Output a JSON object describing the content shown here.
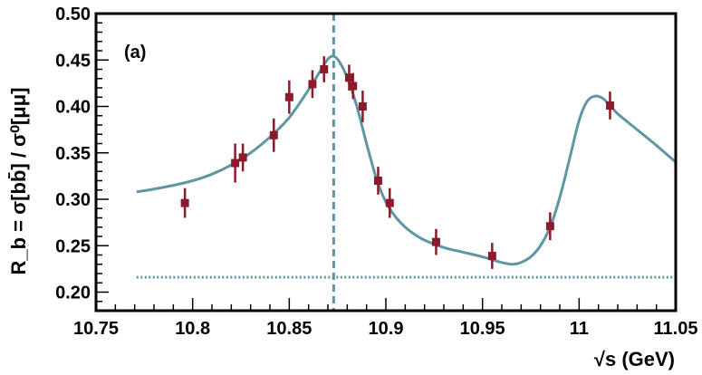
{
  "chart_data": {
    "type": "scatter",
    "panel_label": "(a)",
    "xlabel": "√s (GeV)",
    "ylabel": "R_b = σ[bb̄] / σ⁰[μμ]",
    "xlim": [
      10.75,
      11.05
    ],
    "ylim": [
      0.18,
      0.5
    ],
    "x_ticks": [
      10.75,
      10.8,
      10.85,
      10.9,
      10.95,
      11,
      11.05
    ],
    "x_tick_labels": [
      "10.75",
      "10.8",
      "10.85",
      "10.9",
      "10.95",
      "11",
      "11.05"
    ],
    "y_ticks": [
      0.2,
      0.25,
      0.3,
      0.35,
      0.4,
      0.45,
      0.5
    ],
    "y_tick_labels": [
      "0.20",
      "0.25",
      "0.30",
      "0.35",
      "0.40",
      "0.45",
      "0.50"
    ],
    "grid": false,
    "colors": {
      "points": "#8b1a2b",
      "fit": "#5e97a3",
      "frame": "#000000"
    },
    "points": [
      {
        "x": 10.796,
        "y": 0.296,
        "err": 0.016
      },
      {
        "x": 10.822,
        "y": 0.339,
        "err": 0.021
      },
      {
        "x": 10.826,
        "y": 0.345,
        "err": 0.015
      },
      {
        "x": 10.842,
        "y": 0.369,
        "err": 0.018
      },
      {
        "x": 10.85,
        "y": 0.41,
        "err": 0.018
      },
      {
        "x": 10.862,
        "y": 0.424,
        "err": 0.015
      },
      {
        "x": 10.868,
        "y": 0.44,
        "err": 0.014
      },
      {
        "x": 10.881,
        "y": 0.431,
        "err": 0.014
      },
      {
        "x": 10.883,
        "y": 0.422,
        "err": 0.014
      },
      {
        "x": 10.888,
        "y": 0.4,
        "err": 0.017
      },
      {
        "x": 10.896,
        "y": 0.32,
        "err": 0.015
      },
      {
        "x": 10.902,
        "y": 0.296,
        "err": 0.016
      },
      {
        "x": 10.926,
        "y": 0.254,
        "err": 0.014
      },
      {
        "x": 10.955,
        "y": 0.239,
        "err": 0.014
      },
      {
        "x": 10.985,
        "y": 0.271,
        "err": 0.015
      },
      {
        "x": 11.016,
        "y": 0.401,
        "err": 0.015
      }
    ],
    "fit_curve": {
      "x": [
        10.771,
        10.78,
        10.79,
        10.8,
        10.81,
        10.82,
        10.83,
        10.84,
        10.85,
        10.86,
        10.866,
        10.87,
        10.873,
        10.876,
        10.88,
        10.885,
        10.89,
        10.895,
        10.9,
        10.905,
        10.91,
        10.915,
        10.92,
        10.93,
        10.94,
        10.95,
        10.958,
        10.962,
        10.966,
        10.97,
        10.975,
        10.98,
        10.985,
        10.99,
        10.995,
        11.0,
        11.004,
        11.008,
        11.012,
        11.016,
        11.02,
        11.03,
        11.04,
        11.05
      ],
      "y": [
        0.308,
        0.311,
        0.315,
        0.32,
        0.327,
        0.337,
        0.35,
        0.367,
        0.388,
        0.418,
        0.438,
        0.451,
        0.454,
        0.448,
        0.431,
        0.4,
        0.36,
        0.323,
        0.297,
        0.281,
        0.27,
        0.262,
        0.256,
        0.248,
        0.243,
        0.238,
        0.233,
        0.231,
        0.23,
        0.232,
        0.238,
        0.25,
        0.27,
        0.302,
        0.343,
        0.385,
        0.405,
        0.411,
        0.409,
        0.401,
        0.392,
        0.375,
        0.358,
        0.34
      ]
    },
    "reference_vertical_x": 10.873,
    "reference_horizontal_y": 0.216
  }
}
